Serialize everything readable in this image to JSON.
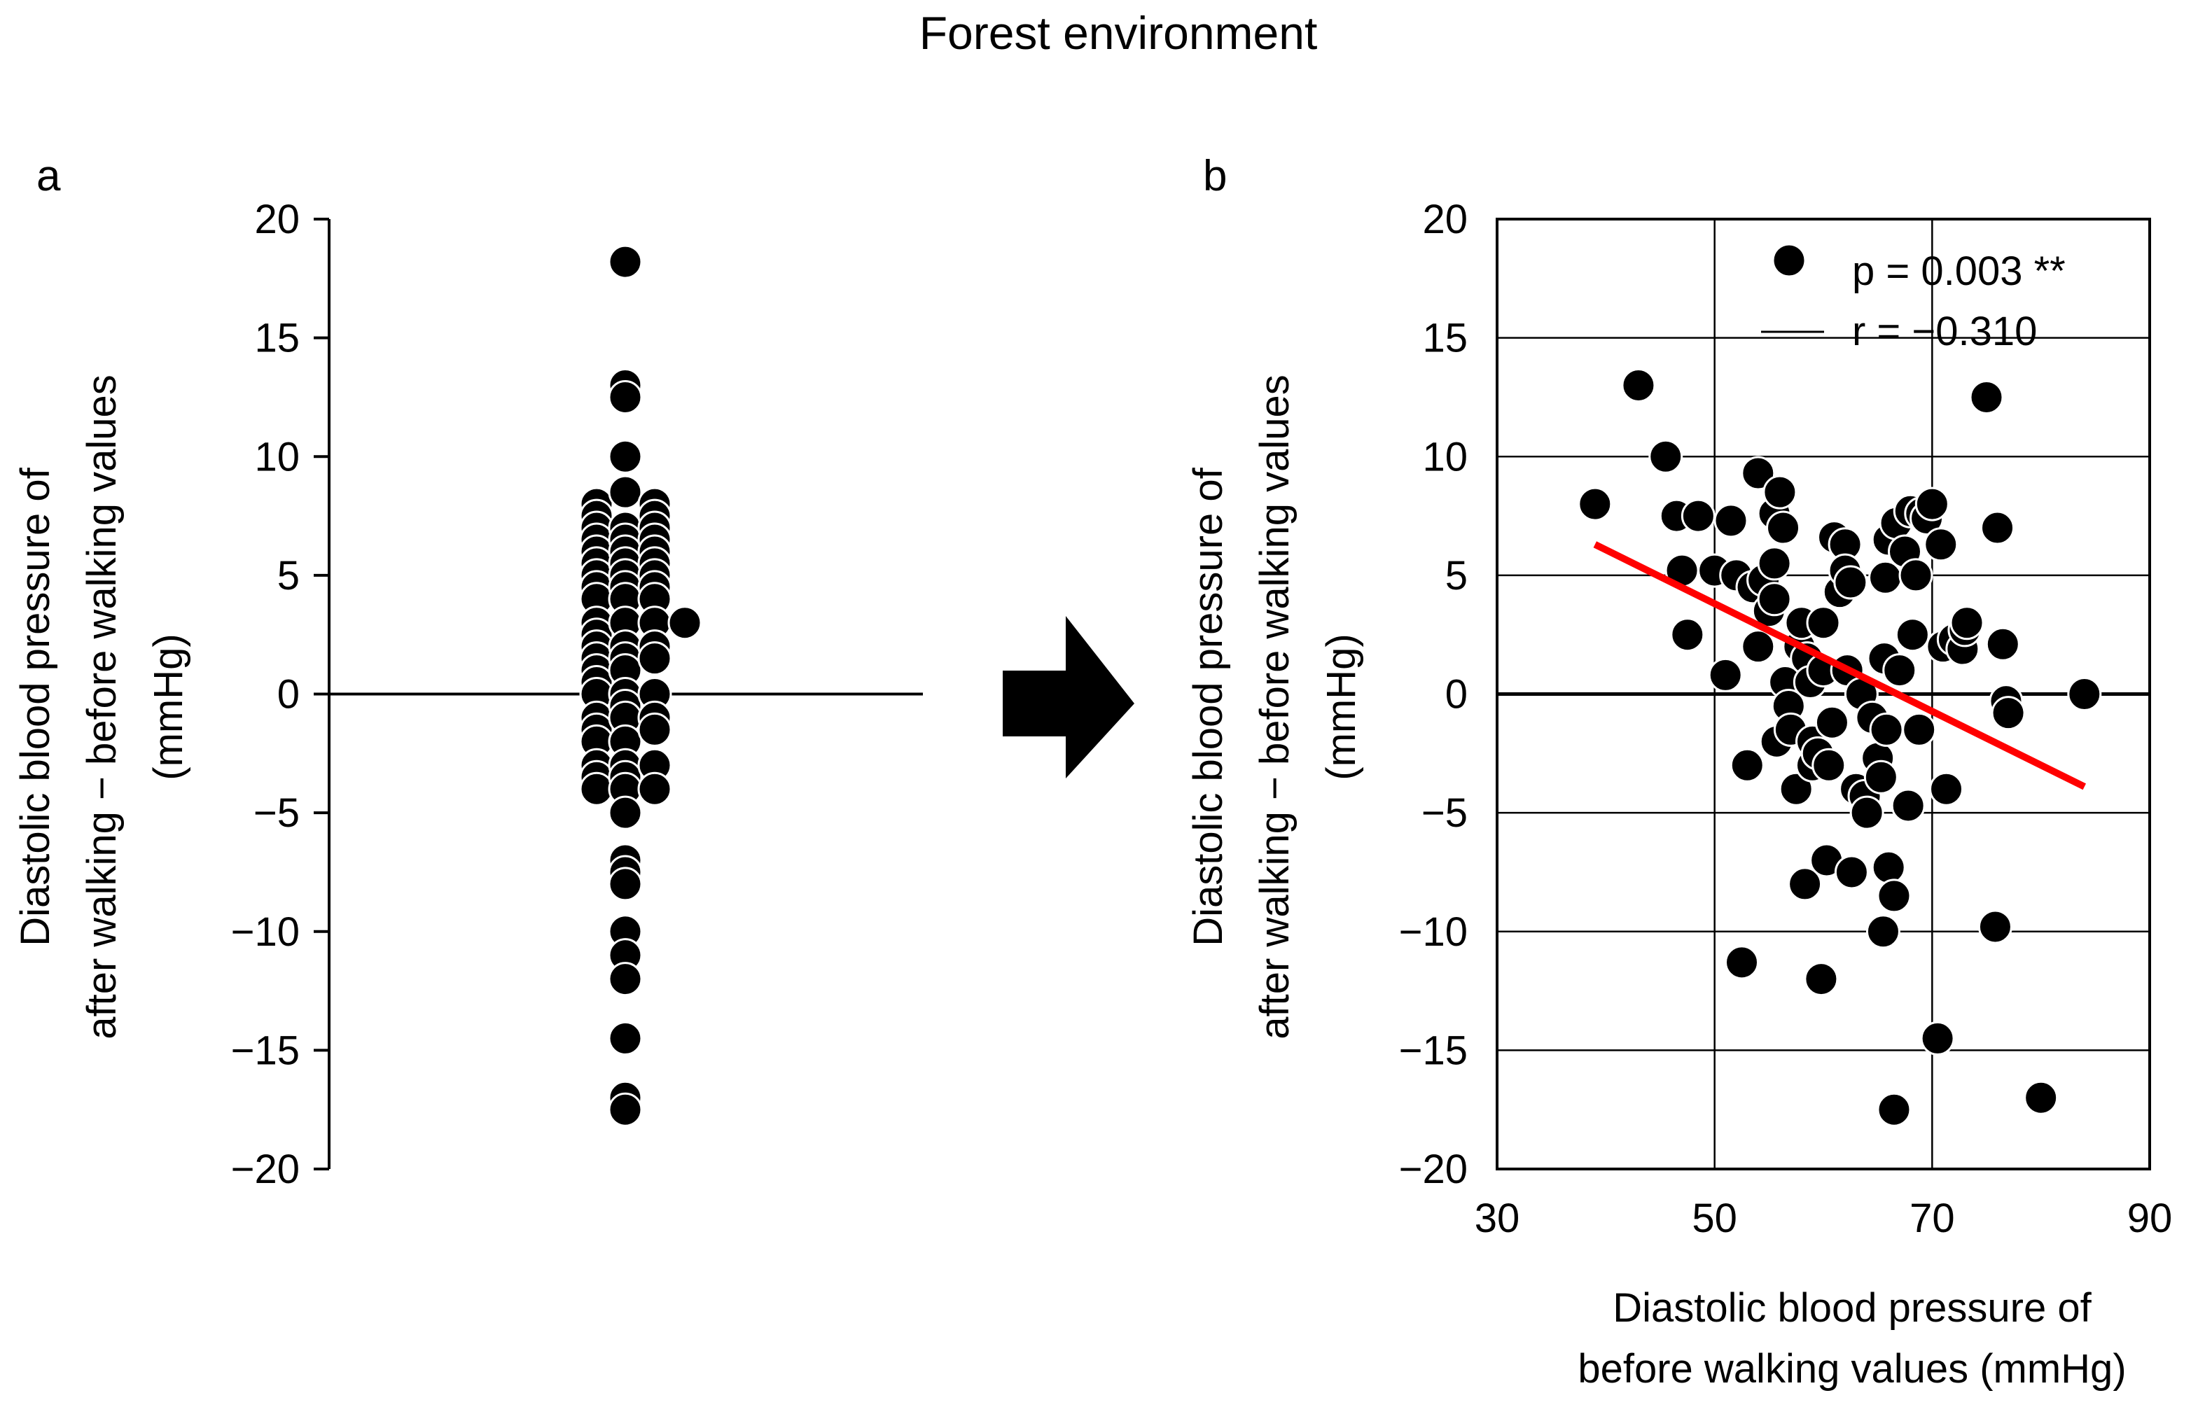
{
  "figure_title": "Forest environment",
  "colors": {
    "points": "#000000",
    "point_edge": "#ffffff",
    "trend": "#ff0000",
    "axis": "#000000",
    "grid": "#000000",
    "arrow": "#000000"
  },
  "chart_data": [
    {
      "panel": "a",
      "type": "scatter",
      "title": "",
      "ylabel_lines": [
        "Diastolic blood pressure of",
        "after walking − before walking values",
        "(mmHg)"
      ],
      "xlabel": "",
      "ylim": [
        -20,
        20
      ],
      "yticks": [
        20,
        15,
        10,
        5,
        0,
        -5,
        -10,
        -15,
        -20
      ],
      "ytick_labels": [
        "20",
        "15",
        "10",
        "5",
        "0",
        "−5",
        "−10",
        "−15",
        "−20"
      ],
      "grid": false,
      "zero_line": true,
      "columns": [
        {
          "group": "left",
          "values": [
            8,
            7.5,
            7,
            6.5,
            6,
            5.5,
            5,
            4.5,
            4,
            3,
            2.5,
            2,
            1.5,
            1,
            0.5,
            0,
            -1,
            -1.5,
            -2,
            -3,
            -3.5,
            -4
          ]
        },
        {
          "group": "center",
          "values": [
            18.2,
            13,
            12.5,
            10,
            8.5,
            7,
            6.5,
            6,
            5.5,
            5,
            4.5,
            4,
            3,
            2,
            1.5,
            1,
            0,
            -0.5,
            -1,
            -2,
            -3,
            -3.5,
            -4,
            -5,
            -7,
            -7.5,
            -8,
            -10,
            -11,
            -12,
            -14.5,
            -17,
            -17.5
          ]
        },
        {
          "group": "right",
          "values": [
            8,
            7.5,
            7,
            6.5,
            6,
            5.5,
            5,
            4.5,
            4,
            3,
            2,
            1.5,
            0,
            -1,
            -1.5,
            -3,
            -4
          ]
        },
        {
          "group": "outlier",
          "values": [
            3
          ]
        }
      ]
    },
    {
      "panel": "b",
      "type": "scatter",
      "title": "",
      "xlabel_lines": [
        "Diastolic blood pressure of",
        "before walking values (mmHg)"
      ],
      "ylabel_lines": [
        "Diastolic blood pressure of",
        "after walking − before walking values",
        "(mmHg)"
      ],
      "xlim": [
        30,
        90
      ],
      "ylim": [
        -20,
        20
      ],
      "xticks": [
        30,
        50,
        70,
        90
      ],
      "xtick_labels": [
        "30",
        "50",
        "70",
        "90"
      ],
      "yticks": [
        20,
        15,
        10,
        5,
        0,
        -5,
        -10,
        -15,
        -20
      ],
      "ytick_labels": [
        "20",
        "15",
        "10",
        "5",
        "0",
        "−5",
        "−10",
        "−15",
        "−20"
      ],
      "grid": true,
      "legend": {
        "position": "top-right",
        "p_text": "p = 0.003 **",
        "r_text": "r  = −0.310"
      },
      "trendline": {
        "x": [
          39,
          84
        ],
        "y": [
          6.3,
          -3.9
        ]
      },
      "points": [
        [
          39,
          8
        ],
        [
          43,
          13
        ],
        [
          45.5,
          10
        ],
        [
          46.5,
          7.5
        ],
        [
          47,
          5.2
        ],
        [
          47.5,
          2.5
        ],
        [
          48.5,
          7.5
        ],
        [
          50,
          5.2
        ],
        [
          51,
          0.8
        ],
        [
          51.5,
          7.3
        ],
        [
          52,
          5
        ],
        [
          52.5,
          -11.3
        ],
        [
          53,
          -3
        ],
        [
          53.5,
          4.5
        ],
        [
          54,
          9.3
        ],
        [
          54,
          2
        ],
        [
          54.5,
          4.8
        ],
        [
          55,
          3.5
        ],
        [
          55.5,
          7.6
        ],
        [
          55.5,
          5.5
        ],
        [
          55.5,
          4
        ],
        [
          55.7,
          -2
        ],
        [
          56,
          8.5
        ],
        [
          56.3,
          7
        ],
        [
          56.5,
          0.5
        ],
        [
          56.8,
          -0.5
        ],
        [
          57,
          -1.5
        ],
        [
          57.5,
          -4
        ],
        [
          57.8,
          2
        ],
        [
          58,
          3
        ],
        [
          58.3,
          -8
        ],
        [
          58.5,
          1.5
        ],
        [
          58.8,
          0.5
        ],
        [
          59,
          -2
        ],
        [
          59,
          -3
        ],
        [
          59.5,
          -2.5
        ],
        [
          59.8,
          -12
        ],
        [
          60,
          1
        ],
        [
          60,
          3
        ],
        [
          60.3,
          -7
        ],
        [
          60.5,
          -3
        ],
        [
          60.8,
          -1.2
        ],
        [
          61,
          6.6
        ],
        [
          61.5,
          4.3
        ],
        [
          62,
          6.3
        ],
        [
          62,
          5.2
        ],
        [
          62.2,
          1
        ],
        [
          62.5,
          4.7
        ],
        [
          62.6,
          -7.5
        ],
        [
          63,
          -4
        ],
        [
          63.5,
          0
        ],
        [
          63.8,
          -4.3
        ],
        [
          64,
          -5
        ],
        [
          64.5,
          -1
        ],
        [
          65,
          -2.7
        ],
        [
          65.3,
          -3.5
        ],
        [
          65.5,
          -10
        ],
        [
          65.6,
          1.5
        ],
        [
          65.7,
          4.9
        ],
        [
          65.8,
          -1.5
        ],
        [
          66,
          -7.3
        ],
        [
          66,
          6.5
        ],
        [
          66.5,
          -17.5
        ],
        [
          66.5,
          -8.5
        ],
        [
          66.7,
          7.2
        ],
        [
          67,
          1
        ],
        [
          67.5,
          6
        ],
        [
          67.8,
          -4.7
        ],
        [
          68,
          7.7
        ],
        [
          68.2,
          2.5
        ],
        [
          68.5,
          5
        ],
        [
          68.8,
          -1.5
        ],
        [
          69,
          7.6
        ],
        [
          69.5,
          7.4
        ],
        [
          70,
          8
        ],
        [
          70.5,
          -14.5
        ],
        [
          70.8,
          6.3
        ],
        [
          71,
          2
        ],
        [
          71.3,
          -4
        ],
        [
          72,
          2.3
        ],
        [
          72.8,
          1.9
        ],
        [
          73,
          2.7
        ],
        [
          73.2,
          3
        ],
        [
          75,
          12.5
        ],
        [
          75.8,
          -9.8
        ],
        [
          76,
          7
        ],
        [
          76.5,
          2.1
        ],
        [
          76.8,
          -0.3
        ],
        [
          77,
          -0.8
        ],
        [
          80,
          -17
        ],
        [
          84,
          0
        ]
      ]
    }
  ]
}
